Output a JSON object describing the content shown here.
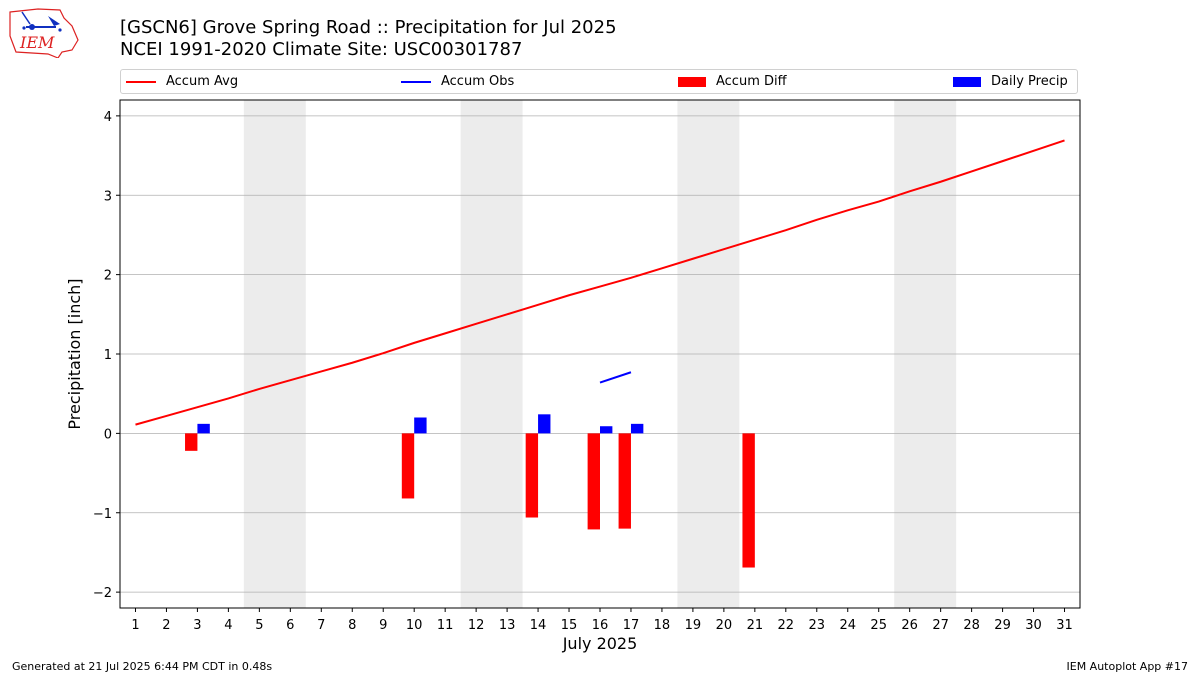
{
  "header": {
    "title_line1": "[GSCN6] Grove Spring Road :: Precipitation for Jul 2025",
    "title_line2": "NCEI 1991-2020 Climate Site: USC00301787",
    "logo_text": "IEM"
  },
  "legend": {
    "accum_avg": "Accum Avg",
    "accum_obs": "Accum Obs",
    "accum_diff": "Accum Diff",
    "daily_precip": "Daily Precip"
  },
  "footer": {
    "left": "Generated at 21 Jul 2025 6:44 PM CDT in 0.48s",
    "right": "IEM Autoplot App #17"
  },
  "colors": {
    "accum_avg": "#ff0000",
    "accum_obs": "#0000ff",
    "accum_diff": "#ff0000",
    "daily_precip": "#0000ff",
    "weekend_shade": "#ececec",
    "grid": "#b0b0b0"
  },
  "chart_data": {
    "type": "bar",
    "xlabel": "July 2025",
    "ylabel": "Precipitation [inch]",
    "ylim": [
      -2.2,
      4.2
    ],
    "xlim": [
      0.5,
      31.5
    ],
    "yticks": [
      -2,
      -1,
      0,
      1,
      2,
      3,
      4
    ],
    "ytick_labels": [
      "−2",
      "−1",
      "0",
      "1",
      "2",
      "3",
      "4"
    ],
    "x_ticks": [
      1,
      2,
      3,
      4,
      5,
      6,
      7,
      8,
      9,
      10,
      11,
      12,
      13,
      14,
      15,
      16,
      17,
      18,
      19,
      20,
      21,
      22,
      23,
      24,
      25,
      26,
      27,
      28,
      29,
      30,
      31
    ],
    "grid": true,
    "legend_position": "top",
    "weekend_shading": [
      [
        4.5,
        6.5
      ],
      [
        11.5,
        13.5
      ],
      [
        18.5,
        20.5
      ],
      [
        25.5,
        27.5
      ]
    ],
    "series": [
      {
        "name": "Accum Avg",
        "kind": "line",
        "x": [
          1,
          2,
          3,
          4,
          5,
          6,
          7,
          8,
          9,
          10,
          11,
          12,
          13,
          14,
          15,
          16,
          17,
          18,
          19,
          20,
          21,
          22,
          23,
          24,
          25,
          26,
          27,
          28,
          29,
          30,
          31
        ],
        "values": [
          0.11,
          0.22,
          0.33,
          0.44,
          0.56,
          0.67,
          0.78,
          0.89,
          1.01,
          1.14,
          1.26,
          1.38,
          1.5,
          1.62,
          1.74,
          1.85,
          1.96,
          2.08,
          2.2,
          2.32,
          2.44,
          2.56,
          2.69,
          2.81,
          2.92,
          3.05,
          3.17,
          3.3,
          3.43,
          3.56,
          3.69
        ]
      },
      {
        "name": "Accum Obs",
        "kind": "line",
        "x": [
          16,
          17
        ],
        "values": [
          0.64,
          0.77
        ]
      },
      {
        "name": "Accum Diff",
        "kind": "bar",
        "x": [
          3,
          10,
          14,
          16,
          17,
          21
        ],
        "values": [
          -0.22,
          -0.82,
          -1.06,
          -1.21,
          -1.2,
          -1.69
        ]
      },
      {
        "name": "Daily Precip",
        "kind": "bar",
        "x": [
          3,
          10,
          14,
          16,
          17
        ],
        "values": [
          0.12,
          0.2,
          0.24,
          0.09,
          0.12
        ]
      }
    ]
  }
}
